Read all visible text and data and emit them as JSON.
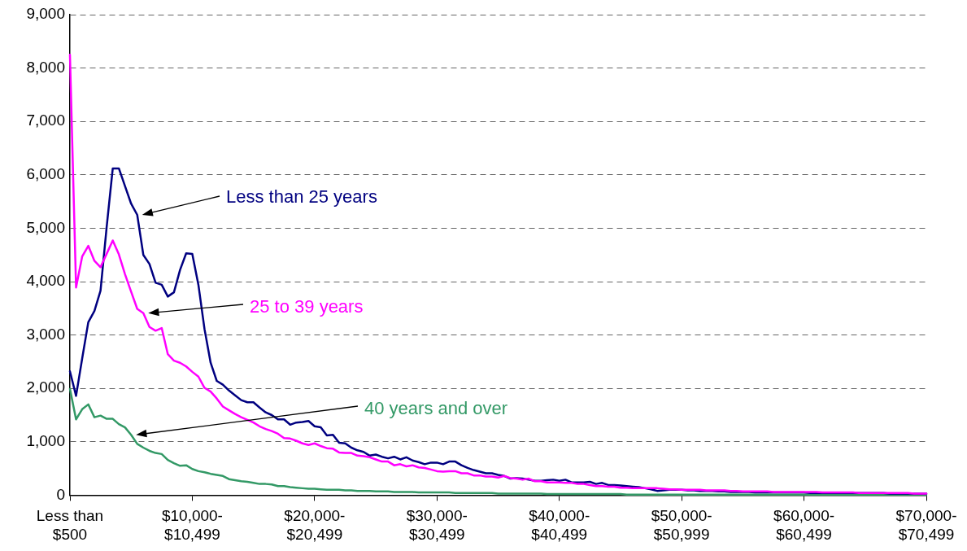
{
  "chart_data": {
    "type": "line",
    "categories": [
      "Less than\n$500",
      null,
      null,
      null,
      null,
      null,
      null,
      null,
      null,
      null,
      null,
      null,
      null,
      null,
      null,
      null,
      null,
      null,
      null,
      null,
      "$10,000-\n$10,499",
      null,
      null,
      null,
      null,
      null,
      null,
      null,
      null,
      null,
      null,
      null,
      null,
      null,
      null,
      null,
      null,
      null,
      null,
      null,
      "$20,000-\n$20,499",
      null,
      null,
      null,
      null,
      null,
      null,
      null,
      null,
      null,
      null,
      null,
      null,
      null,
      null,
      null,
      null,
      null,
      null,
      null,
      "$30,000-\n$30,499",
      null,
      null,
      null,
      null,
      null,
      null,
      null,
      null,
      null,
      null,
      null,
      null,
      null,
      null,
      null,
      null,
      null,
      null,
      null,
      "$40,000-\n$40,499",
      null,
      null,
      null,
      null,
      null,
      null,
      null,
      null,
      null,
      null,
      null,
      null,
      null,
      null,
      null,
      null,
      null,
      null,
      null,
      "$50,000-\n$50,999",
      null,
      null,
      null,
      null,
      null,
      null,
      null,
      null,
      null,
      null,
      null,
      null,
      null,
      null,
      null,
      null,
      null,
      null,
      null,
      "$60,000-\n$60,499",
      null,
      null,
      null,
      null,
      null,
      null,
      null,
      null,
      null,
      null,
      null,
      null,
      null,
      null,
      null,
      null,
      null,
      null,
      null,
      "$70,000-\n$70,499"
    ],
    "series": [
      {
        "name": "Less than 25 years",
        "color": "#000080",
        "values": [
          2320,
          1860,
          2560,
          3240,
          3450,
          3830,
          5020,
          6120,
          6120,
          5790,
          5460,
          5250,
          4500,
          4330,
          3980,
          3940,
          3720,
          3800,
          4220,
          4530,
          4520,
          3940,
          3110,
          2480,
          2140,
          2070,
          1960,
          1870,
          1780,
          1740,
          1740,
          1640,
          1550,
          1500,
          1420,
          1420,
          1320,
          1360,
          1370,
          1390,
          1290,
          1270,
          1120,
          1130,
          980,
          970,
          890,
          840,
          810,
          740,
          760,
          720,
          690,
          720,
          670,
          710,
          650,
          620,
          580,
          610,
          610,
          580,
          630,
          630,
          560,
          510,
          470,
          440,
          410,
          410,
          380,
          360,
          310,
          320,
          310,
          290,
          270,
          270,
          280,
          290,
          270,
          290,
          240,
          240,
          240,
          250,
          210,
          230,
          190,
          190,
          180,
          170,
          160,
          150,
          130,
          110,
          80,
          90,
          100,
          100,
          100,
          90,
          90,
          80,
          80,
          80,
          70,
          70,
          60,
          60,
          60,
          60,
          50,
          50,
          50,
          50,
          50,
          50,
          50,
          50,
          50,
          40,
          40,
          40,
          40,
          40,
          40,
          40,
          40,
          40,
          40,
          40,
          40,
          40,
          30,
          30,
          30,
          30,
          30,
          30,
          30
        ]
      },
      {
        "name": "25 to 39 years",
        "color": "#ff00ff",
        "values": [
          8250,
          3890,
          4470,
          4670,
          4390,
          4270,
          4520,
          4770,
          4510,
          4140,
          3810,
          3490,
          3410,
          3150,
          3080,
          3130,
          2640,
          2520,
          2480,
          2410,
          2310,
          2220,
          2010,
          1940,
          1810,
          1660,
          1590,
          1520,
          1460,
          1410,
          1360,
          1290,
          1240,
          1200,
          1150,
          1070,
          1060,
          1020,
          970,
          940,
          970,
          920,
          880,
          870,
          800,
          790,
          790,
          740,
          730,
          710,
          670,
          630,
          630,
          560,
          580,
          540,
          560,
          520,
          510,
          480,
          450,
          440,
          450,
          450,
          410,
          410,
          370,
          370,
          350,
          350,
          330,
          360,
          320,
          310,
          290,
          310,
          260,
          260,
          240,
          240,
          240,
          230,
          230,
          210,
          210,
          190,
          170,
          170,
          160,
          160,
          140,
          140,
          130,
          130,
          130,
          130,
          130,
          120,
          110,
          110,
          100,
          100,
          100,
          100,
          90,
          90,
          90,
          90,
          80,
          80,
          70,
          70,
          70,
          70,
          70,
          60,
          60,
          60,
          60,
          60,
          60,
          60,
          60,
          50,
          50,
          50,
          50,
          50,
          50,
          40,
          40,
          40,
          40,
          40,
          40,
          40,
          40,
          40,
          30,
          30,
          30
        ]
      },
      {
        "name": "40 years and over",
        "color": "#339966",
        "values": [
          1990,
          1420,
          1610,
          1700,
          1460,
          1490,
          1430,
          1430,
          1330,
          1270,
          1130,
          960,
          890,
          830,
          790,
          770,
          660,
          600,
          550,
          560,
          490,
          450,
          430,
          400,
          380,
          360,
          300,
          280,
          260,
          250,
          230,
          210,
          210,
          200,
          170,
          170,
          150,
          140,
          130,
          120,
          120,
          110,
          100,
          100,
          100,
          90,
          90,
          80,
          80,
          80,
          70,
          70,
          70,
          60,
          60,
          60,
          60,
          50,
          50,
          50,
          50,
          50,
          50,
          40,
          40,
          40,
          40,
          40,
          40,
          40,
          30,
          30,
          30,
          30,
          30,
          30,
          30,
          30,
          20,
          20,
          20,
          20,
          20,
          20,
          20,
          20,
          20,
          20,
          20,
          20,
          20,
          10,
          10,
          10,
          10,
          10,
          10,
          10,
          10,
          10,
          10,
          10,
          10,
          10,
          10,
          10,
          10,
          10,
          10,
          10,
          10,
          10,
          10,
          10,
          10,
          10,
          10,
          10,
          10,
          10,
          10,
          10,
          10,
          10,
          10,
          10,
          10,
          10,
          10,
          10,
          10,
          10,
          10,
          10,
          10,
          10,
          10,
          10,
          10,
          10,
          10
        ]
      }
    ],
    "ylim": [
      0,
      9000
    ],
    "yticks": [
      {
        "value": 0,
        "label": "0"
      },
      {
        "value": 1000,
        "label": "1,000"
      },
      {
        "value": 2000,
        "label": "2,000"
      },
      {
        "value": 3000,
        "label": "3,000"
      },
      {
        "value": 4000,
        "label": "4,000"
      },
      {
        "value": 5000,
        "label": "5,000"
      },
      {
        "value": 6000,
        "label": "6,000"
      },
      {
        "value": 7000,
        "label": "7,000"
      },
      {
        "value": 8000,
        "label": "8,000"
      },
      {
        "value": 9000,
        "label": "9,000"
      }
    ],
    "grid": "y",
    "legend": false,
    "marker": "none",
    "line_style": "solid"
  }
}
